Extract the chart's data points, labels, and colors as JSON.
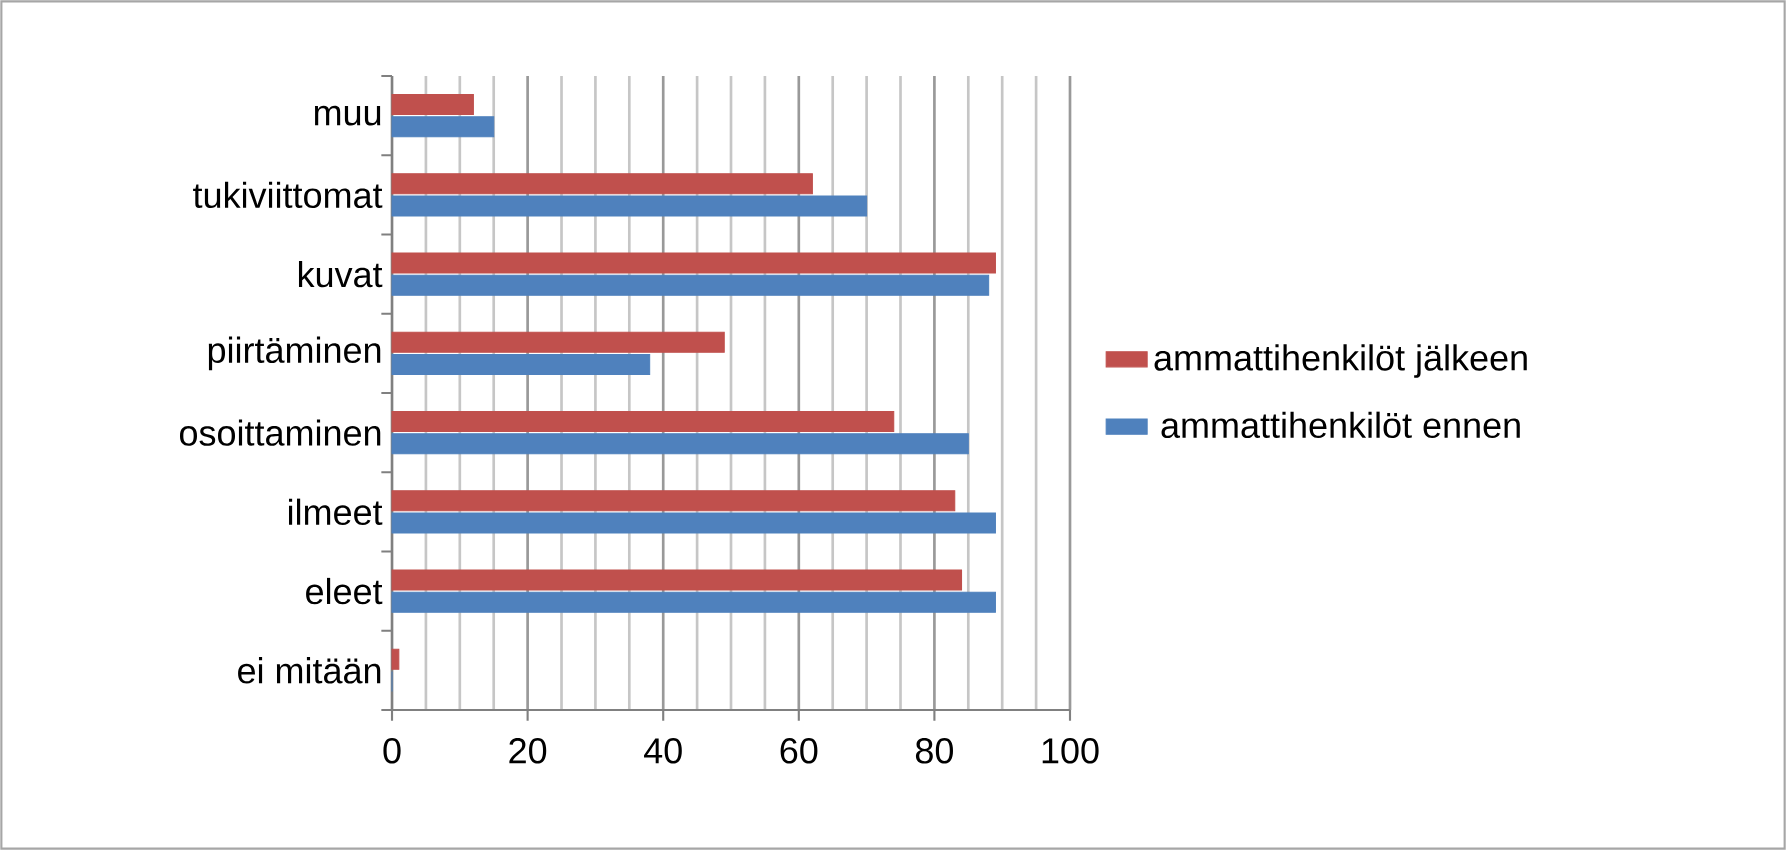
{
  "chart_data": {
    "type": "bar",
    "orientation": "horizontal",
    "categories": [
      "muu",
      "tukiviittomat",
      "kuvat",
      "piirtäminen",
      "osoittaminen",
      "ilmeet",
      "eleet",
      "ei mitään"
    ],
    "series": [
      {
        "name": "ammattihenkilöt ennen",
        "color": "#4f81bd",
        "values": [
          15,
          70,
          88,
          38,
          85,
          89,
          89,
          0
        ]
      },
      {
        "name": "ammattihenkilöt jälkeen",
        "color": "#c0504d",
        "values": [
          12,
          62,
          89,
          49,
          74,
          83,
          84,
          1
        ]
      }
    ],
    "xlim": [
      0,
      100
    ],
    "xticks": [
      0,
      20,
      40,
      60,
      80,
      100
    ],
    "grid": "x",
    "legend": "right"
  }
}
